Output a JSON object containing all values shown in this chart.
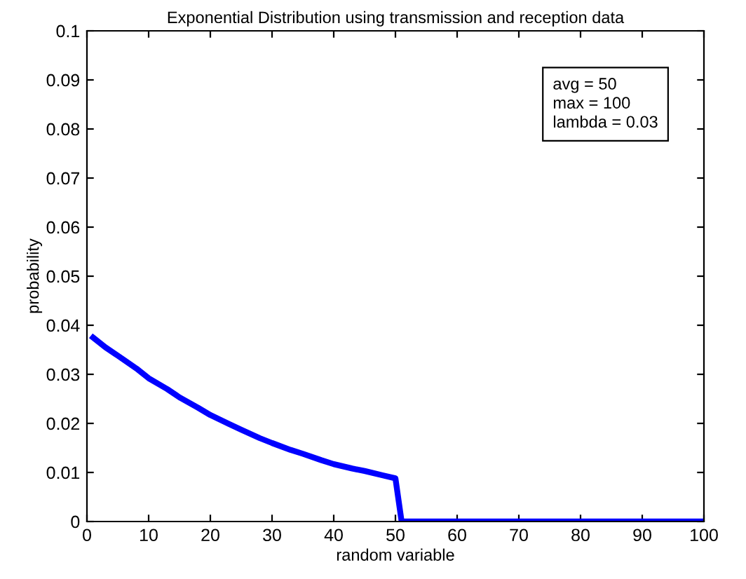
{
  "chart_data": {
    "type": "line",
    "title": "Exponential Distribution using transmission and reception data",
    "xlabel": "random variable",
    "ylabel": "probability",
    "annotations": [
      "avg = 50",
      "max = 100",
      "lambda = 0.03"
    ],
    "series": [
      {
        "color": "#0000ff",
        "x": [
          1,
          3,
          5,
          8,
          10,
          13,
          15,
          18,
          20,
          23,
          25,
          28,
          30,
          33,
          35,
          38,
          40,
          43,
          45,
          48,
          50,
          51,
          55,
          60,
          70,
          80,
          90,
          100
        ],
        "values": [
          0.0375,
          0.0355,
          0.0338,
          0.0312,
          0.0292,
          0.027,
          0.0253,
          0.0232,
          0.0217,
          0.0199,
          0.0187,
          0.017,
          0.016,
          0.0146,
          0.0138,
          0.0125,
          0.0117,
          0.0108,
          0.0103,
          0.0094,
          0.0088,
          0,
          0,
          0,
          0,
          0,
          0,
          0
        ]
      }
    ],
    "xlim": [
      0,
      100
    ],
    "ylim": [
      0,
      0.1
    ],
    "xticks": [
      0,
      10,
      20,
      30,
      40,
      50,
      60,
      70,
      80,
      90,
      100
    ],
    "yticks": [
      0,
      0.01,
      0.02,
      0.03,
      0.04,
      0.05,
      0.06,
      0.07,
      0.08,
      0.09,
      0.1
    ],
    "grid": false,
    "legend": false,
    "marker": "none",
    "line_style": "solid"
  }
}
